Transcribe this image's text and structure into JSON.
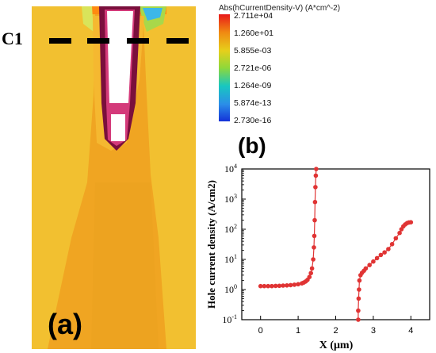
{
  "panel_labels": {
    "c1": "C1",
    "a": "(a)",
    "b": "(b)"
  },
  "legend": {
    "title": "Abs(hCurrentDensity-V) (A*cm^-2)",
    "values": [
      "2.711e+04",
      "1.260e+01",
      "5.855e-03",
      "2.721e-06",
      "1.264e-09",
      "5.874e-13",
      "2.730e-16"
    ],
    "colors": [
      "#e8191a",
      "#f08a12",
      "#e6cf1b",
      "#8fd83a",
      "#18c7c0",
      "#2b8ee8",
      "#1432d8"
    ]
  },
  "colors": {
    "series": "#e03434",
    "background_map": "#f0a522",
    "trench": "#7a0f3c"
  },
  "chart_data": {
    "type": "scatter",
    "xlabel": "X (μm)",
    "ylabel": "Hole current density (A/cm2)",
    "x_ticks": [
      "0",
      "1",
      "2",
      "3",
      "4"
    ],
    "y_ticks": [
      "10^-1",
      "10^0",
      "10^1",
      "10^2",
      "10^3",
      "10^4"
    ],
    "xlim": [
      -0.5,
      4.5
    ],
    "ylim": [
      0.1,
      10000
    ],
    "y_scale": "log",
    "grid": false,
    "series": [
      {
        "points": [
          [
            0.0,
            1.3
          ],
          [
            0.1,
            1.3
          ],
          [
            0.2,
            1.3
          ],
          [
            0.3,
            1.3
          ],
          [
            0.4,
            1.32
          ],
          [
            0.5,
            1.33
          ],
          [
            0.6,
            1.35
          ],
          [
            0.7,
            1.37
          ],
          [
            0.8,
            1.4
          ],
          [
            0.9,
            1.45
          ],
          [
            1.0,
            1.5
          ],
          [
            1.1,
            1.6
          ],
          [
            1.15,
            1.7
          ],
          [
            1.2,
            1.85
          ],
          [
            1.25,
            2.1
          ],
          [
            1.3,
            2.6
          ],
          [
            1.34,
            3.5
          ],
          [
            1.37,
            5
          ],
          [
            1.4,
            10
          ],
          [
            1.42,
            25
          ],
          [
            1.43,
            60
          ],
          [
            1.44,
            200
          ],
          [
            1.45,
            800
          ],
          [
            1.46,
            2500
          ],
          [
            1.47,
            6000
          ],
          [
            1.48,
            10000
          ]
        ]
      },
      {
        "points": [
          [
            2.6,
            0.1
          ],
          [
            2.6,
            0.2
          ],
          [
            2.61,
            0.5
          ],
          [
            2.62,
            1.0
          ],
          [
            2.63,
            2.0
          ],
          [
            2.66,
            3.0
          ],
          [
            2.7,
            3.6
          ],
          [
            2.75,
            4.2
          ],
          [
            2.8,
            5.0
          ],
          [
            2.9,
            6.5
          ],
          [
            3.0,
            8.5
          ],
          [
            3.1,
            11
          ],
          [
            3.2,
            14
          ],
          [
            3.3,
            17
          ],
          [
            3.4,
            22
          ],
          [
            3.5,
            32
          ],
          [
            3.6,
            50
          ],
          [
            3.7,
            75
          ],
          [
            3.75,
            100
          ],
          [
            3.8,
            125
          ],
          [
            3.85,
            145
          ],
          [
            3.9,
            160
          ],
          [
            3.95,
            168
          ],
          [
            4.0,
            170
          ]
        ]
      }
    ]
  }
}
